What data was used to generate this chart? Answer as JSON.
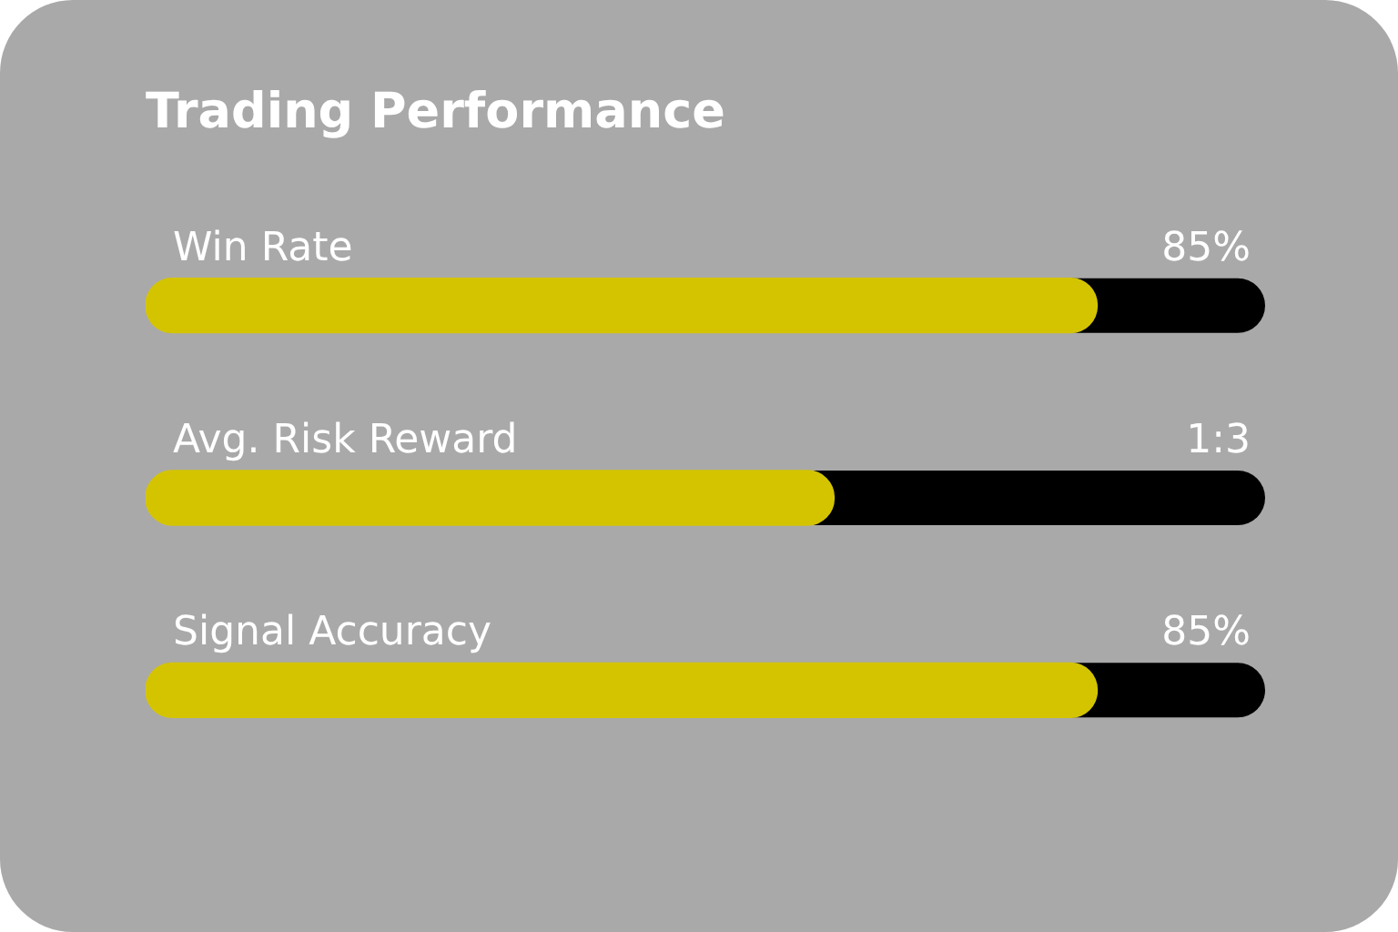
{
  "chart_data": {
    "type": "bar",
    "title": "Trading Performance",
    "orientation": "horizontal",
    "categories": [
      "Win Rate",
      "Avg. Risk Reward",
      "Signal Accuracy"
    ],
    "xlim": [
      0,
      100
    ],
    "tick_labels": false,
    "series": [
      {
        "color": "#d4c400",
        "values": [
          85,
          61.5,
          85
        ],
        "value_labels": [
          "85%",
          "1:3",
          "85%"
        ]
      }
    ],
    "legend": false
  }
}
